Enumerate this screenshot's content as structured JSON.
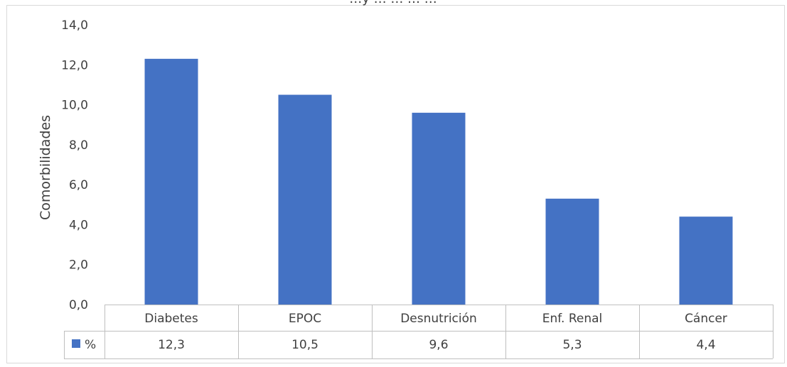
{
  "chart_data": {
    "type": "bar",
    "title": "…y … … … …",
    "ylabel": "Comorbilidades",
    "xlabel": "",
    "categories": [
      "Diabetes",
      "EPOC",
      "Desnutrición",
      "Enf. Renal",
      "Cáncer"
    ],
    "series": [
      {
        "name": "%",
        "values": [
          12.3,
          10.5,
          9.6,
          5.3,
          4.4
        ],
        "labels": [
          "12,3",
          "10,5",
          "9,6",
          "5,3",
          "4,4"
        ]
      }
    ],
    "ylim": [
      0,
      14
    ],
    "yticks": [
      "0,0",
      "2,0",
      "4,0",
      "6,0",
      "8,0",
      "10,0",
      "12,0",
      "14,0"
    ],
    "grid": false,
    "legend": "data-table-left",
    "bar_color": "#4472C4"
  }
}
